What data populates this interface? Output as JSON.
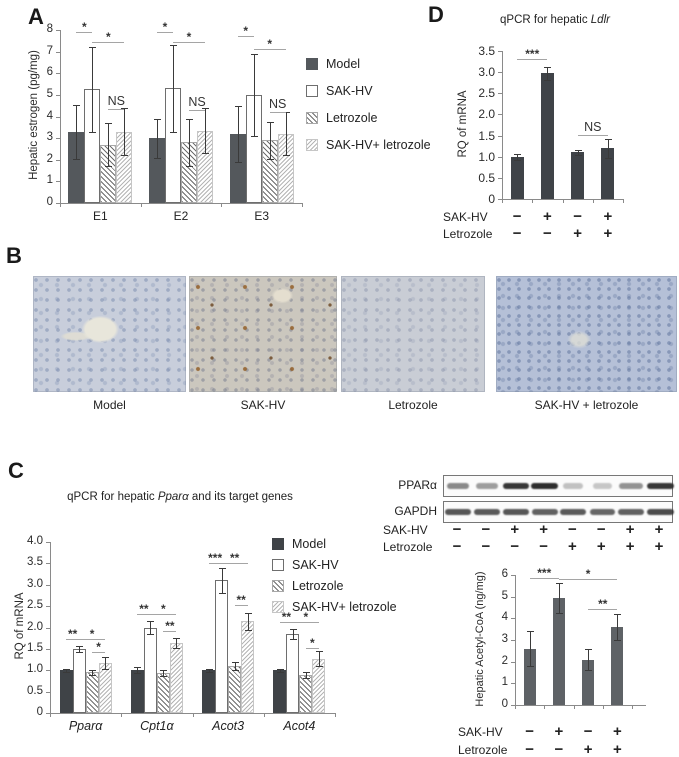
{
  "figure": {
    "letters": {
      "a": "A",
      "b": "B",
      "c": "C",
      "d": "D"
    }
  },
  "colors": {
    "bar_dark_a": "#54585c",
    "bar_dark_c": "#3f4347",
    "bar_dark_d": "#3f4348",
    "bar_dark_acetyl": "#5e6266",
    "axis": "#8a8a8a",
    "sig_line": "#a5a5a5",
    "text": "#2b2b2b",
    "tissue_model": "#c8cedb",
    "tissue_sakhv": "#cbc7be",
    "tissue_letrozole": "#c9cdd5",
    "tissue_combo": "#b5c0d7"
  },
  "panel_b": {
    "captions": [
      "Model",
      "SAK-HV",
      "Letrozole",
      "SAK-HV + letrozole"
    ]
  },
  "panel_c_title": {
    "prefix": "qPCR for hepatic ",
    "gene": "Pparα",
    "suffix": " and its target genes"
  },
  "panel_d_title": {
    "prefix": "qPCR for hepatic ",
    "gene": "Ldlr"
  },
  "western_blot": {
    "target_label": "PPARα",
    "loading_label": "GAPDH",
    "lanes": 8,
    "target_bands": [
      0.55,
      0.45,
      0.95,
      1.0,
      0.28,
      0.25,
      0.5,
      0.95
    ],
    "target_widths": [
      22,
      22,
      26,
      27,
      20,
      19,
      24,
      27
    ],
    "loading_bands": [
      0.8,
      0.78,
      0.8,
      0.75,
      0.78,
      0.72,
      0.75,
      0.85
    ],
    "loading_widths": [
      26,
      26,
      26,
      26,
      26,
      25,
      26,
      27
    ],
    "sign_rows": [
      {
        "label": "SAK-HV",
        "signs": [
          "−",
          "−",
          "+",
          "+",
          "−",
          "−",
          "+",
          "+"
        ]
      },
      {
        "label": "Letrozole",
        "signs": [
          "−",
          "−",
          "−",
          "−",
          "+",
          "+",
          "+",
          "+"
        ]
      }
    ]
  },
  "chart_data": [
    {
      "id": "estrogen",
      "type": "bar",
      "title": "",
      "xlabel": "",
      "ylabel": "Hepatic estrogen (pg/mg)",
      "ylim": [
        0,
        8
      ],
      "yticks": [
        {
          "v": 0,
          "label": "0"
        },
        {
          "v": 1,
          "label": "1"
        },
        {
          "v": 2,
          "label": "2"
        },
        {
          "v": 3,
          "label": "3"
        },
        {
          "v": 4,
          "label": "4"
        },
        {
          "v": 5,
          "label": "5"
        },
        {
          "v": 6,
          "label": "6"
        },
        {
          "v": 7,
          "label": "7"
        },
        {
          "v": 8,
          "label": "8"
        }
      ],
      "categories": [
        "E1",
        "E2",
        "E3"
      ],
      "categories_italic": false,
      "legend_position": "right",
      "series": [
        {
          "name": "Model",
          "style": "solid",
          "color": "#54585c",
          "values": [
            3.3,
            3.0,
            3.2
          ],
          "errors": [
            1.25,
            0.9,
            1.3
          ]
        },
        {
          "name": "SAK-HV",
          "style": "open",
          "color": "#ffffff",
          "values": [
            5.25,
            5.3,
            5.0
          ],
          "errors": [
            1.95,
            2.0,
            1.9
          ]
        },
        {
          "name": "Letrozole",
          "style": "hatch-dark",
          "color": "#707070",
          "values": [
            2.7,
            2.8,
            2.9
          ],
          "errors": [
            1.0,
            1.1,
            0.85
          ]
        },
        {
          "name": "SAK-HV+ letrozole",
          "style": "hatch-light",
          "color": "#bdbdbd",
          "values": [
            3.3,
            3.35,
            3.2
          ],
          "errors": [
            1.1,
            1.05,
            1.0
          ]
        }
      ],
      "annotations": [
        {
          "group": 0,
          "from": 0,
          "to": 1,
          "label": "*",
          "y": 7.9
        },
        {
          "group": 0,
          "from": 1,
          "to": 3,
          "label": "*",
          "y": 7.45
        },
        {
          "group": 0,
          "from": 2,
          "to": 3,
          "label": "NS",
          "y": 4.35
        },
        {
          "group": 1,
          "from": 0,
          "to": 1,
          "label": "*",
          "y": 7.9
        },
        {
          "group": 1,
          "from": 1,
          "to": 3,
          "label": "*",
          "y": 7.45
        },
        {
          "group": 1,
          "from": 2,
          "to": 3,
          "label": "NS",
          "y": 4.3
        },
        {
          "group": 2,
          "from": 0,
          "to": 1,
          "label": "*",
          "y": 7.7
        },
        {
          "group": 2,
          "from": 1,
          "to": 3,
          "label": "*",
          "y": 7.1
        },
        {
          "group": 2,
          "from": 2,
          "to": 3,
          "label": "NS",
          "y": 4.2
        }
      ]
    },
    {
      "id": "ldlr",
      "type": "bar",
      "title": "qPCR for hepatic Ldlr",
      "ylabel": "RQ of mRNA",
      "ylim": [
        0,
        3.5
      ],
      "yticks": [
        {
          "v": 0,
          "label": "0"
        },
        {
          "v": 0.5,
          "label": "0.5"
        },
        {
          "v": 1,
          "label": "1.0"
        },
        {
          "v": 1.5,
          "label": "1.5"
        },
        {
          "v": 2,
          "label": "2.0"
        },
        {
          "v": 2.5,
          "label": "2.5"
        },
        {
          "v": 3,
          "label": "3.0"
        },
        {
          "v": 3.5,
          "label": "3.5"
        }
      ],
      "categories": [
        "",
        "",
        "",
        ""
      ],
      "series": [
        {
          "name": "RQ of mRNA",
          "style": "solid",
          "color": "#3f4348",
          "values": [
            1.0,
            2.97,
            1.1,
            1.2
          ],
          "errors": [
            0.07,
            0.15,
            0.06,
            0.22
          ]
        }
      ],
      "annotations": [
        {
          "from": 0,
          "to": 1,
          "label": "***",
          "y": 3.3
        },
        {
          "from": 2,
          "to": 3,
          "label": "NS",
          "y": 1.52
        }
      ],
      "sign_rows": [
        {
          "label": "SAK-HV",
          "signs": [
            "−",
            "+",
            "−",
            "+"
          ]
        },
        {
          "label": "Letrozole",
          "signs": [
            "−",
            "−",
            "+",
            "+"
          ]
        }
      ]
    },
    {
      "id": "ppara",
      "type": "bar",
      "title": "qPCR for hepatic Pparα and its target genes",
      "ylabel": "RQ of mRNA",
      "ylim": [
        0,
        4
      ],
      "yticks": [
        {
          "v": 0,
          "label": "0"
        },
        {
          "v": 0.5,
          "label": "0.5"
        },
        {
          "v": 1,
          "label": "1.0"
        },
        {
          "v": 1.5,
          "label": "1.5"
        },
        {
          "v": 2,
          "label": "2.0"
        },
        {
          "v": 2.5,
          "label": "2.5"
        },
        {
          "v": 3,
          "label": "3.0"
        },
        {
          "v": 3.5,
          "label": "3.5"
        },
        {
          "v": 4,
          "label": "4.0"
        }
      ],
      "categories": [
        "Pparα",
        "Cpt1α",
        "Acot3",
        "Acot4"
      ],
      "categories_italic": true,
      "legend_position": "inset-right",
      "series": [
        {
          "name": "Model",
          "style": "solid",
          "color": "#3f4347",
          "values": [
            1.0,
            1.0,
            1.0,
            1.0
          ],
          "errors": [
            0.03,
            0.07,
            0.04,
            0.04
          ]
        },
        {
          "name": "SAK-HV",
          "style": "open",
          "color": "#ffffff",
          "values": [
            1.5,
            2.0,
            3.1,
            1.85
          ],
          "errors": [
            0.07,
            0.15,
            0.3,
            0.12
          ]
        },
        {
          "name": "Letrozole",
          "style": "hatch-dark",
          "color": "#707070",
          "values": [
            0.95,
            0.93,
            1.1,
            0.9
          ],
          "errors": [
            0.05,
            0.07,
            0.1,
            0.07
          ]
        },
        {
          "name": "SAK-HV+ letrozole",
          "style": "hatch-light",
          "color": "#bdbdbd",
          "values": [
            1.17,
            1.63,
            2.15,
            1.27
          ],
          "errors": [
            0.13,
            0.12,
            0.2,
            0.17
          ]
        }
      ],
      "annotations": [
        {
          "group": 0,
          "from": 0,
          "to": 1,
          "label": "**",
          "y": 1.72
        },
        {
          "group": 0,
          "from": 1,
          "to": 3,
          "label": "*",
          "y": 1.72
        },
        {
          "group": 0,
          "from": 2,
          "to": 3,
          "label": "*",
          "y": 1.42
        },
        {
          "group": 1,
          "from": 0,
          "to": 1,
          "label": "**",
          "y": 2.32
        },
        {
          "group": 1,
          "from": 1,
          "to": 3,
          "label": "*",
          "y": 2.32
        },
        {
          "group": 1,
          "from": 2,
          "to": 3,
          "label": "**",
          "y": 1.92
        },
        {
          "group": 2,
          "from": 0,
          "to": 1,
          "label": "***",
          "y": 3.52
        },
        {
          "group": 2,
          "from": 1,
          "to": 3,
          "label": "**",
          "y": 3.52
        },
        {
          "group": 2,
          "from": 2,
          "to": 3,
          "label": "**",
          "y": 2.52
        },
        {
          "group": 3,
          "from": 0,
          "to": 1,
          "label": "**",
          "y": 2.12
        },
        {
          "group": 3,
          "from": 1,
          "to": 3,
          "label": "*",
          "y": 2.12
        },
        {
          "group": 3,
          "from": 2,
          "to": 3,
          "label": "*",
          "y": 1.52
        }
      ]
    },
    {
      "id": "acetylcoa",
      "type": "bar",
      "title": "",
      "ylabel": "Hepatic Acetyl-CoA (ng/mg)",
      "ylim": [
        0,
        6
      ],
      "yticks": [
        {
          "v": 0,
          "label": "0"
        },
        {
          "v": 1,
          "label": "1"
        },
        {
          "v": 2,
          "label": "2"
        },
        {
          "v": 3,
          "label": "3"
        },
        {
          "v": 4,
          "label": "4"
        },
        {
          "v": 5,
          "label": "5"
        },
        {
          "v": 6,
          "label": "6"
        }
      ],
      "categories": [
        "",
        "",
        "",
        ""
      ],
      "series": [
        {
          "name": "Hepatic Acetyl-CoA",
          "style": "solid",
          "color": "#5e6266",
          "values": [
            2.6,
            4.95,
            2.1,
            3.6
          ],
          "errors": [
            0.8,
            0.7,
            0.5,
            0.62
          ]
        }
      ],
      "annotations": [
        {
          "from": 0,
          "to": 1,
          "label": "***",
          "y": 5.85
        },
        {
          "from": 1,
          "to": 3,
          "label": "*",
          "y": 5.8
        },
        {
          "from": 2,
          "to": 3,
          "label": "**",
          "y": 4.45
        }
      ],
      "sign_rows": [
        {
          "label": "SAK-HV",
          "signs": [
            "−",
            "+",
            "−",
            "+"
          ]
        },
        {
          "label": "Letrozole",
          "signs": [
            "−",
            "−",
            "+",
            "+"
          ]
        }
      ]
    }
  ]
}
